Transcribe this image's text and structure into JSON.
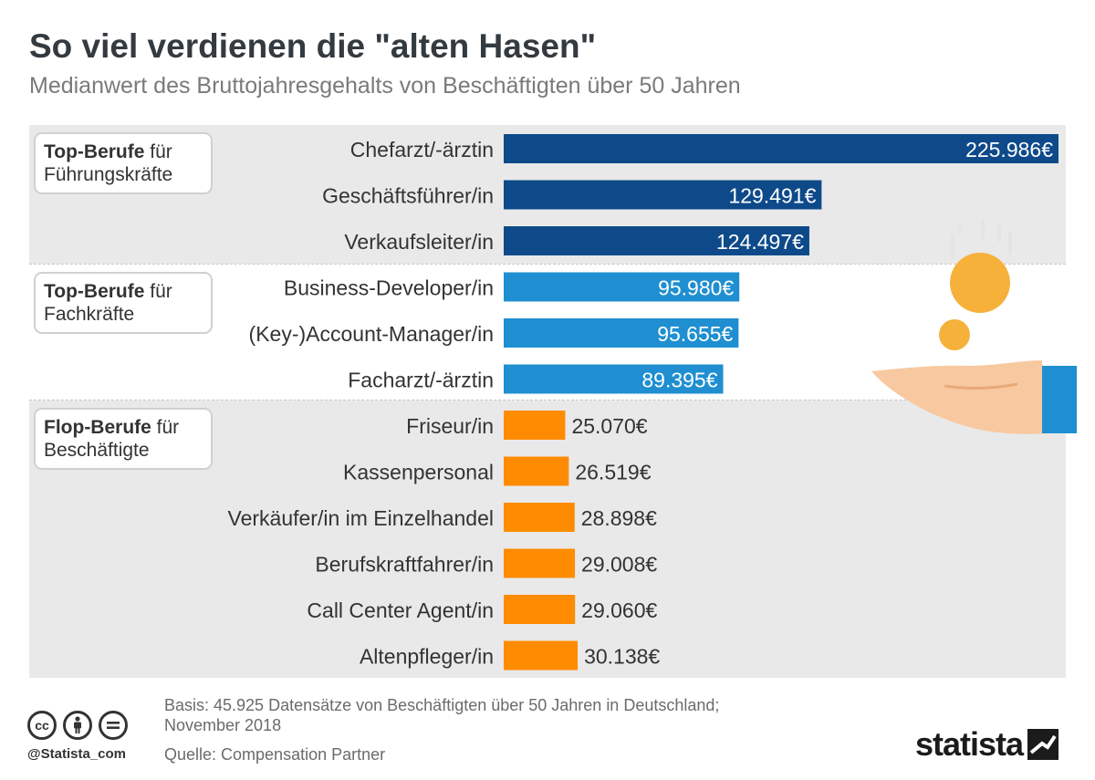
{
  "header": {
    "title": "So viel verdienen die \"alten Hasen\"",
    "subtitle": "Medianwert des Bruttojahresgehalts von Beschäftigten über 50 Jahren"
  },
  "groups": [
    {
      "bold": "Top-Berufe",
      "rest": " für",
      "line2": "Führungskräfte"
    },
    {
      "bold": "Top-Berufe",
      "rest": " für",
      "line2": "Fachkräfte"
    },
    {
      "bold": "Flop-Berufe",
      "rest": " für",
      "line2": "Beschäftigte"
    }
  ],
  "chart_data": {
    "type": "bar",
    "orientation": "horizontal",
    "categories": [
      "Chefarzt/-ärztin",
      "Geschäftsführer/in",
      "Verkaufsleiter/in",
      "Business-Developer/in",
      "(Key-)Account-Manager/in",
      "Facharzt/-ärztin",
      "Friseur/in",
      "Kassenpersonal",
      "Verkäufer/in im Einzelhandel",
      "Berufskraftfahrer/in",
      "Call Center Agent/in",
      "Altenpfleger/in"
    ],
    "values": [
      225986,
      129491,
      124497,
      95980,
      95655,
      89395,
      25070,
      26519,
      28898,
      29008,
      29060,
      30138
    ],
    "value_labels": [
      "225.986€",
      "129.491€",
      "124.497€",
      "95.980€",
      "95.655€",
      "89.395€",
      "25.070€",
      "26.519€",
      "28.898€",
      "29.008€",
      "29.060€",
      "30.138€"
    ],
    "group_index": [
      0,
      0,
      0,
      1,
      1,
      1,
      2,
      2,
      2,
      2,
      2,
      2
    ],
    "colors": [
      "#0e4a8a",
      "#1f8fd1",
      "#ff8c00"
    ]
  },
  "footer": {
    "basis_line1": "Basis: 45.925 Datensätze von Beschäftigten über 50 Jahren in Deutschland;",
    "basis_line2": "November 2018",
    "source": "Quelle: Compensation Partner",
    "handle": "@Statista_com",
    "logo": "statista",
    "cc_icons": [
      "cc-icon",
      "by-person-icon",
      "equals-icon"
    ]
  }
}
